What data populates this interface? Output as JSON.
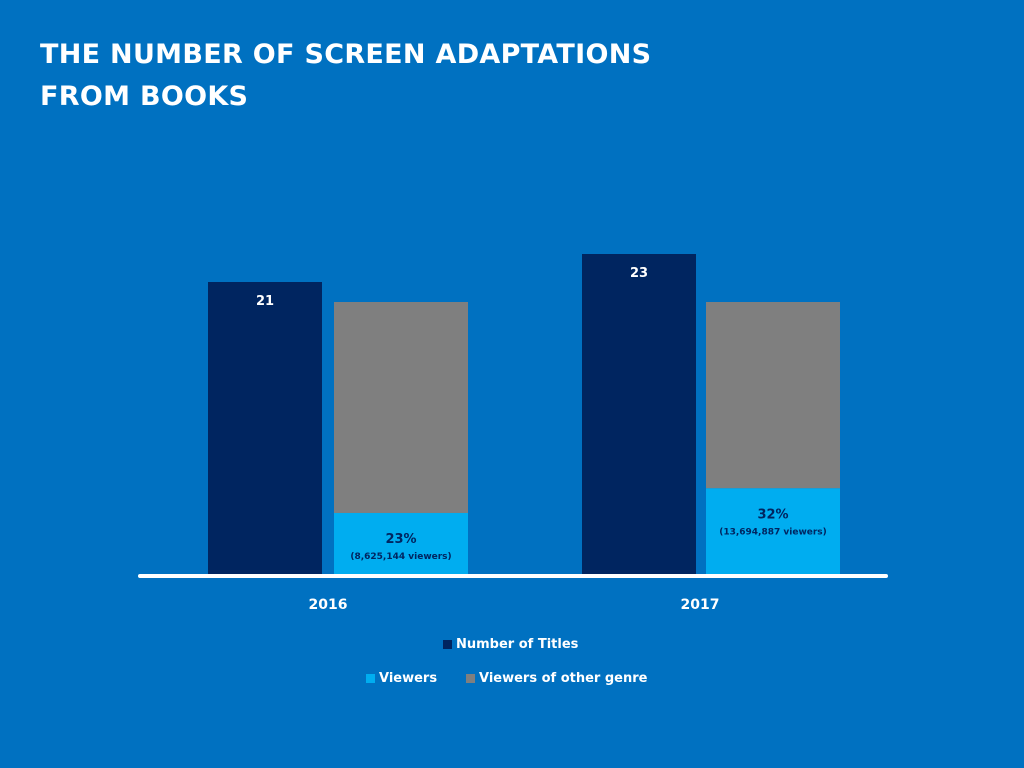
{
  "title_lines": [
    "THE NUMBER OF SCREEN ADAPTATIONS",
    "FROM BOOKS"
  ],
  "colors": {
    "background": "#0071c1",
    "titles": "#002560",
    "viewers": "#00adf0",
    "other_genre": "#7f7f7f",
    "baseline": "#ffffff",
    "label_text": "#ffffff",
    "viewer_label_text": "#002560"
  },
  "chart_data": {
    "type": "bar",
    "categories": [
      "2016",
      "2017"
    ],
    "series": [
      {
        "name": "Number of Titles",
        "values": [
          21,
          23
        ],
        "labels": [
          "21",
          "23"
        ],
        "color": "#002560"
      },
      {
        "name": "Viewers",
        "values": [
          23,
          32
        ],
        "unit": "%",
        "labels": [
          "23%",
          "32%"
        ],
        "sublabels": [
          "(8,625,144 viewers)",
          "(13,694,887 viewers)"
        ],
        "stacked_with": "Viewers of other genre",
        "color": "#00adf0"
      },
      {
        "name": "Viewers of other genre",
        "values": [
          77,
          68
        ],
        "unit": "%",
        "color": "#7f7f7f"
      }
    ],
    "legend": [
      "Number of Titles",
      "Viewers",
      "Viewers of other genre"
    ],
    "legend_position": "bottom",
    "grid": false
  }
}
